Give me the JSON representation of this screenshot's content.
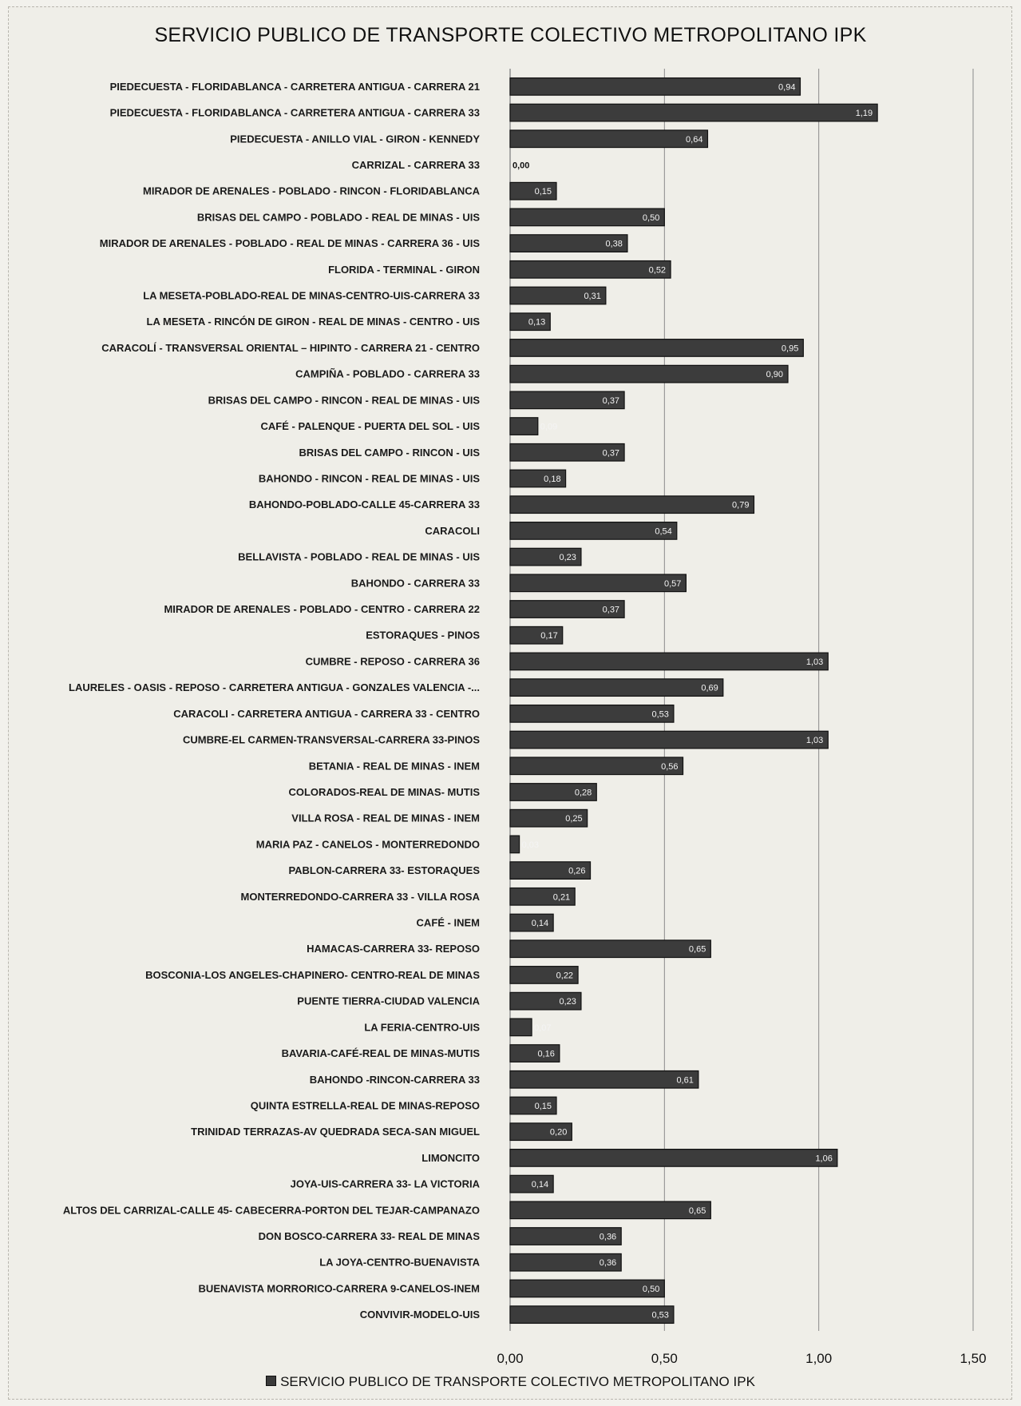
{
  "chart_data": {
    "type": "bar",
    "orientation": "horizontal",
    "title": "SERVICIO PUBLICO DE TRANSPORTE COLECTIVO METROPOLITANO IPK",
    "legend": {
      "entries": [
        "SERVICIO PUBLICO DE TRANSPORTE COLECTIVO METROPOLITANO IPK"
      ],
      "placement": "bottom"
    },
    "xlim": [
      0,
      1.5
    ],
    "ticks": [
      {
        "value": 0,
        "label": "0,00"
      },
      {
        "value": 0.5,
        "label": "0,50"
      },
      {
        "value": 1.0,
        "label": "1,00"
      },
      {
        "value": 1.5,
        "label": "1,50"
      }
    ],
    "grid": "vertical",
    "colors": {
      "bar": "#3c3c3c",
      "bar_edge": "#111111",
      "grid": "#8a8a8a"
    },
    "categories": [
      "PIEDECUESTA - FLORIDABLANCA - CARRETERA ANTIGUA - CARRERA 21",
      "PIEDECUESTA - FLORIDABLANCA - CARRETERA ANTIGUA - CARRERA 33",
      "PIEDECUESTA - ANILLO VIAL - GIRON - KENNEDY",
      "CARRIZAL - CARRERA 33",
      "MIRADOR DE ARENALES - POBLADO - RINCON - FLORIDABLANCA",
      "BRISAS DEL CAMPO - POBLADO - REAL DE MINAS - UIS",
      "MIRADOR DE ARENALES - POBLADO - REAL DE MINAS - CARRERA 36 - UIS",
      "FLORIDA - TERMINAL - GIRON",
      "LA MESETA-POBLADO-REAL DE MINAS-CENTRO-UIS-CARRERA 33",
      "LA MESETA - RINCÓN DE GIRON - REAL DE MINAS - CENTRO - UIS",
      "CARACOLÍ - TRANSVERSAL ORIENTAL – HIPINTO - CARRERA 21 - CENTRO",
      "CAMPIÑA - POBLADO - CARRERA 33",
      "BRISAS DEL CAMPO - RINCON - REAL DE MINAS - UIS",
      "CAFÉ - PALENQUE - PUERTA DEL SOL - UIS",
      "BRISAS DEL CAMPO - RINCON - UIS",
      "BAHONDO - RINCON - REAL DE MINAS - UIS",
      "BAHONDO-POBLADO-CALLE 45-CARRERA 33",
      "CARACOLI",
      "BELLAVISTA - POBLADO - REAL DE MINAS - UIS",
      "BAHONDO - CARRERA 33",
      "MIRADOR DE ARENALES - POBLADO - CENTRO - CARRERA 22",
      "ESTORAQUES - PINOS",
      "CUMBRE - REPOSO - CARRERA 36",
      "LAURELES - OASIS - REPOSO - CARRETERA ANTIGUA - GONZALES VALENCIA -...",
      "CARACOLI - CARRETERA ANTIGUA - CARRERA 33 - CENTRO",
      "CUMBRE-EL CARMEN-TRANSVERSAL-CARRERA 33-PINOS",
      "BETANIA - REAL DE MINAS - INEM",
      "COLORADOS-REAL DE MINAS- MUTIS",
      "VILLA ROSA - REAL DE MINAS - INEM",
      "MARIA PAZ - CANELOS - MONTERREDONDO",
      "PABLON-CARRERA 33- ESTORAQUES",
      "MONTERREDONDO-CARRERA 33 - VILLA ROSA",
      "CAFÉ - INEM",
      "HAMACAS-CARRERA 33- REPOSO",
      "BOSCONIA-LOS ANGELES-CHAPINERO- CENTRO-REAL DE MINAS",
      "PUENTE TIERRA-CIUDAD VALENCIA",
      "LA FERIA-CENTRO-UIS",
      "BAVARIA-CAFÉ-REAL DE MINAS-MUTIS",
      "BAHONDO -RINCON-CARRERA 33",
      "QUINTA ESTRELLA-REAL DE MINAS-REPOSO",
      "TRINIDAD TERRAZAS-AV QUEDRADA SECA-SAN MIGUEL",
      "LIMONCITO",
      "JOYA-UIS-CARRERA 33- LA VICTORIA",
      "ALTOS DEL CARRIZAL-CALLE 45- CABECERRA-PORTON DEL TEJAR-CAMPANAZO",
      "DON BOSCO-CARRERA 33- REAL DE MINAS",
      "LA JOYA-CENTRO-BUENAVISTA",
      "BUENAVISTA MORRORICO-CARRERA 9-CANELOS-INEM",
      "CONVIVIR-MODELO-UIS"
    ],
    "values": [
      0.94,
      1.19,
      0.64,
      0.0,
      0.15,
      0.5,
      0.38,
      0.52,
      0.31,
      0.13,
      0.95,
      0.9,
      0.37,
      0.09,
      0.37,
      0.18,
      0.79,
      0.54,
      0.23,
      0.57,
      0.37,
      0.17,
      1.03,
      0.69,
      0.53,
      1.03,
      0.56,
      0.28,
      0.25,
      0.03,
      0.26,
      0.21,
      0.14,
      0.65,
      0.22,
      0.23,
      0.07,
      0.16,
      0.61,
      0.15,
      0.2,
      1.06,
      0.14,
      0.65,
      0.36,
      0.36,
      0.5,
      0.53
    ],
    "value_labels": [
      "0,94",
      "1,19",
      "0,64",
      "0,00",
      "0,15",
      "0,50",
      "0,38",
      "0,52",
      "0,31",
      "0,13",
      "0,95",
      "0,90",
      "0,37",
      "0,09",
      "0,37",
      "0,18",
      "0,79",
      "0,54",
      "0,23",
      "0,57",
      "0,37",
      "0,17",
      "1,03",
      "0,69",
      "0,53",
      "1,03",
      "0,56",
      "0,28",
      "0,25",
      "0,03",
      "0,26",
      "0,21",
      "0,14",
      "0,65",
      "0,22",
      "0,23",
      "0,07",
      "0,16",
      "0,61",
      "0,15",
      "0,20",
      "1,06",
      "0,14",
      "0,65",
      "0,36",
      "0,36",
      "0,50",
      "0,53"
    ]
  }
}
